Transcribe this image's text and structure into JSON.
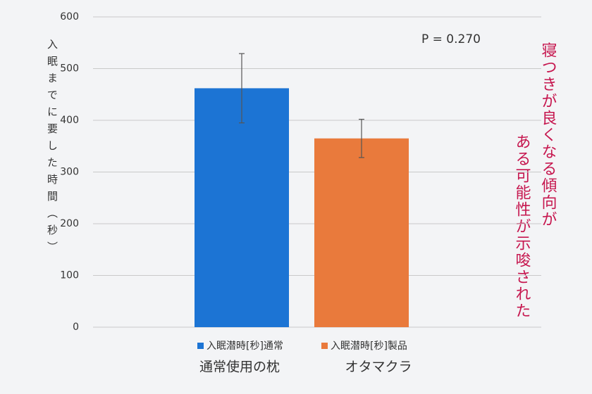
{
  "chart_data": {
    "type": "bar",
    "y_label": "入眠までに要した時間（秒）",
    "categories": [
      "通常使用の枕",
      "オタマクラ"
    ],
    "values": [
      462,
      365
    ],
    "errors": [
      67,
      37
    ],
    "colors": [
      "#1c74d4",
      "#e97a3c"
    ],
    "legend": [
      "入眠潜時[秒]通常",
      "入眠潜時[秒]製品"
    ],
    "ylim": [
      0,
      600
    ],
    "yticks": [
      0,
      100,
      200,
      300,
      400,
      500,
      600
    ],
    "grid": true,
    "annotation": "P = 0.270",
    "side_note": [
      "寝つきが良くなる傾向が",
      "ある可能性が示唆された"
    ]
  }
}
